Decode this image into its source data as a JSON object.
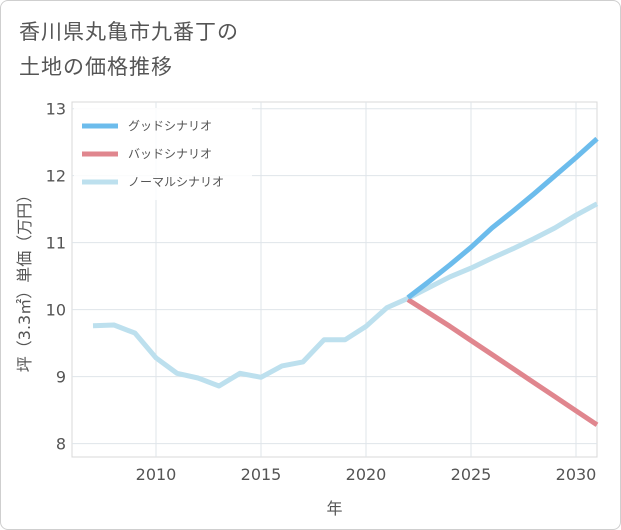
{
  "title_lines": [
    "香川県丸亀市九番丁の",
    "土地の価格推移"
  ],
  "chart_data": {
    "type": "line",
    "xlabel": "年",
    "ylabel": "坪（3.3㎡）単価（万円）",
    "xlim": [
      2006,
      2031
    ],
    "ylim": [
      7.8,
      13.1
    ],
    "xticks": [
      2010,
      2015,
      2020,
      2025,
      2030
    ],
    "yticks": [
      8,
      9,
      10,
      11,
      12,
      13
    ],
    "grid": true,
    "legend_position": "top-left",
    "series": [
      {
        "name": "グッドシナリオ",
        "color": "#6cbcec",
        "x": [
          2022,
          2023,
          2024,
          2025,
          2026,
          2027,
          2028,
          2029,
          2030,
          2031
        ],
        "values": [
          10.18,
          10.42,
          10.67,
          10.93,
          11.22,
          11.47,
          11.73,
          12.0,
          12.27,
          12.55
        ]
      },
      {
        "name": "バッドシナリオ",
        "color": "#e0868e",
        "x": [
          2022,
          2023,
          2024,
          2025,
          2026,
          2027,
          2028,
          2029,
          2030,
          2031
        ],
        "values": [
          10.15,
          9.95,
          9.75,
          9.54,
          9.33,
          9.12,
          8.91,
          8.7,
          8.49,
          8.28
        ]
      },
      {
        "name": "ノーマルシナリオ",
        "color": "#bde0ee",
        "x": [
          2007,
          2008,
          2009,
          2010,
          2011,
          2012,
          2013,
          2014,
          2015,
          2016,
          2017,
          2018,
          2019,
          2020,
          2021,
          2022,
          2023,
          2024,
          2025,
          2026,
          2027,
          2028,
          2029,
          2030,
          2031
        ],
        "values": [
          9.76,
          9.77,
          9.65,
          9.28,
          9.05,
          8.98,
          8.86,
          9.05,
          8.99,
          9.16,
          9.22,
          9.55,
          9.55,
          9.75,
          10.03,
          10.17,
          10.33,
          10.49,
          10.62,
          10.77,
          10.91,
          11.06,
          11.22,
          11.41,
          11.58
        ]
      }
    ]
  }
}
